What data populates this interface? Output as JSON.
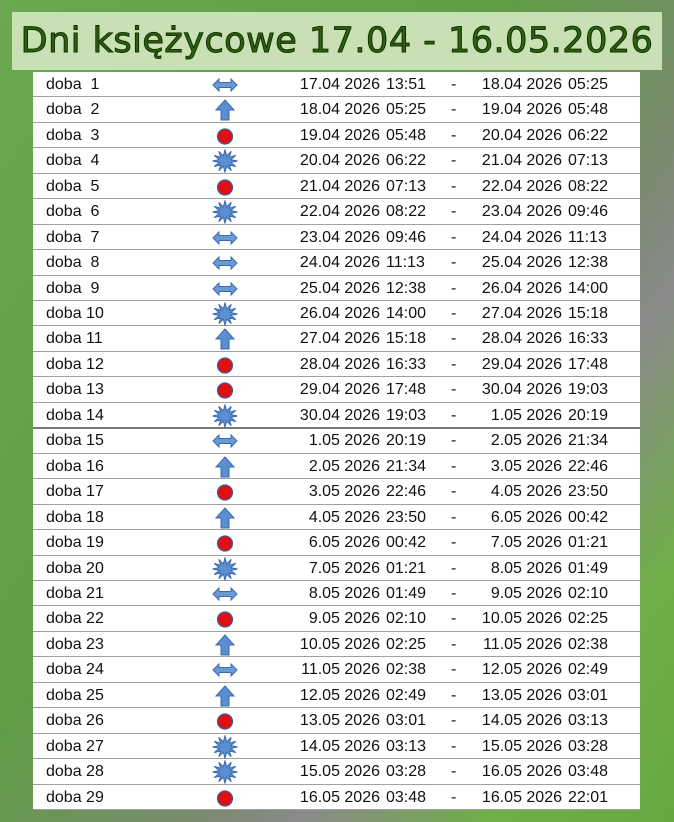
{
  "header": {
    "title": "Dni księżycowe 17.04 - 16.05.2026"
  },
  "separator": "-",
  "table": {
    "rows": [
      [
        "doba  1",
        "17.04 2026",
        "13:51",
        "18.04 2026",
        "05:25"
      ],
      [
        "doba  2",
        "18.04 2026",
        "05:25",
        "19.04 2026",
        "05:48"
      ],
      [
        "doba  3",
        "19.04 2026",
        "05:48",
        "20.04 2026",
        "06:22"
      ],
      [
        "doba  4",
        "20.04 2026",
        "06:22",
        "21.04 2026",
        "07:13"
      ],
      [
        "doba  5",
        "21.04 2026",
        "07:13",
        "22.04 2026",
        "08:22"
      ],
      [
        "doba  6",
        "22.04 2026",
        "08:22",
        "23.04 2026",
        "09:46"
      ],
      [
        "doba  7",
        "23.04 2026",
        "09:46",
        "24.04 2026",
        "11:13"
      ],
      [
        "doba  8",
        "24.04 2026",
        "11:13",
        "25.04 2026",
        "12:38"
      ],
      [
        "doba  9",
        "25.04 2026",
        "12:38",
        "26.04 2026",
        "14:00"
      ],
      [
        "doba 10",
        "26.04 2026",
        "14:00",
        "27.04 2026",
        "15:18"
      ],
      [
        "doba 11",
        "27.04 2026",
        "15:18",
        "28.04 2026",
        "16:33"
      ],
      [
        "doba 12",
        "28.04 2026",
        "16:33",
        "29.04 2026",
        "17:48"
      ],
      [
        "doba 13",
        "29.04 2026",
        "17:48",
        "30.04 2026",
        "19:03"
      ],
      [
        "doba 14",
        "30.04 2026",
        "19:03",
        "1.05 2026",
        "20:19"
      ],
      [
        "doba 15",
        "1.05 2026",
        "20:19",
        "2.05 2026",
        "21:34"
      ],
      [
        "doba 16",
        "2.05 2026",
        "21:34",
        "3.05 2026",
        "22:46"
      ],
      [
        "doba 17",
        "3.05 2026",
        "22:46",
        "4.05 2026",
        "23:50"
      ],
      [
        "doba 18",
        "4.05 2026",
        "23:50",
        "6.05 2026",
        "00:42"
      ],
      [
        "doba 19",
        "6.05 2026",
        "00:42",
        "7.05 2026",
        "01:21"
      ],
      [
        "doba 20",
        "7.05 2026",
        "01:21",
        "8.05 2026",
        "01:49"
      ],
      [
        "doba 21",
        "8.05 2026",
        "01:49",
        "9.05 2026",
        "02:10"
      ],
      [
        "doba 22",
        "9.05 2026",
        "02:10",
        "10.05 2026",
        "02:25"
      ],
      [
        "doba 23",
        "10.05 2026",
        "02:25",
        "11.05 2026",
        "02:38"
      ],
      [
        "doba 24",
        "11.05 2026",
        "02:38",
        "12.05 2026",
        "02:49"
      ],
      [
        "doba 25",
        "12.05 2026",
        "02:49",
        "13.05 2026",
        "03:01"
      ],
      [
        "doba 26",
        "13.05 2026",
        "03:01",
        "14.05 2026",
        "03:13"
      ],
      [
        "doba 27",
        "14.05 2026",
        "03:13",
        "15.05 2026",
        "03:28"
      ],
      [
        "doba 28",
        "15.05 2026",
        "03:28",
        "16.05 2026",
        "03:48"
      ],
      [
        "doba 29",
        "16.05 2026",
        "03:48",
        "16.05 2026",
        "22:01"
      ]
    ]
  }
}
